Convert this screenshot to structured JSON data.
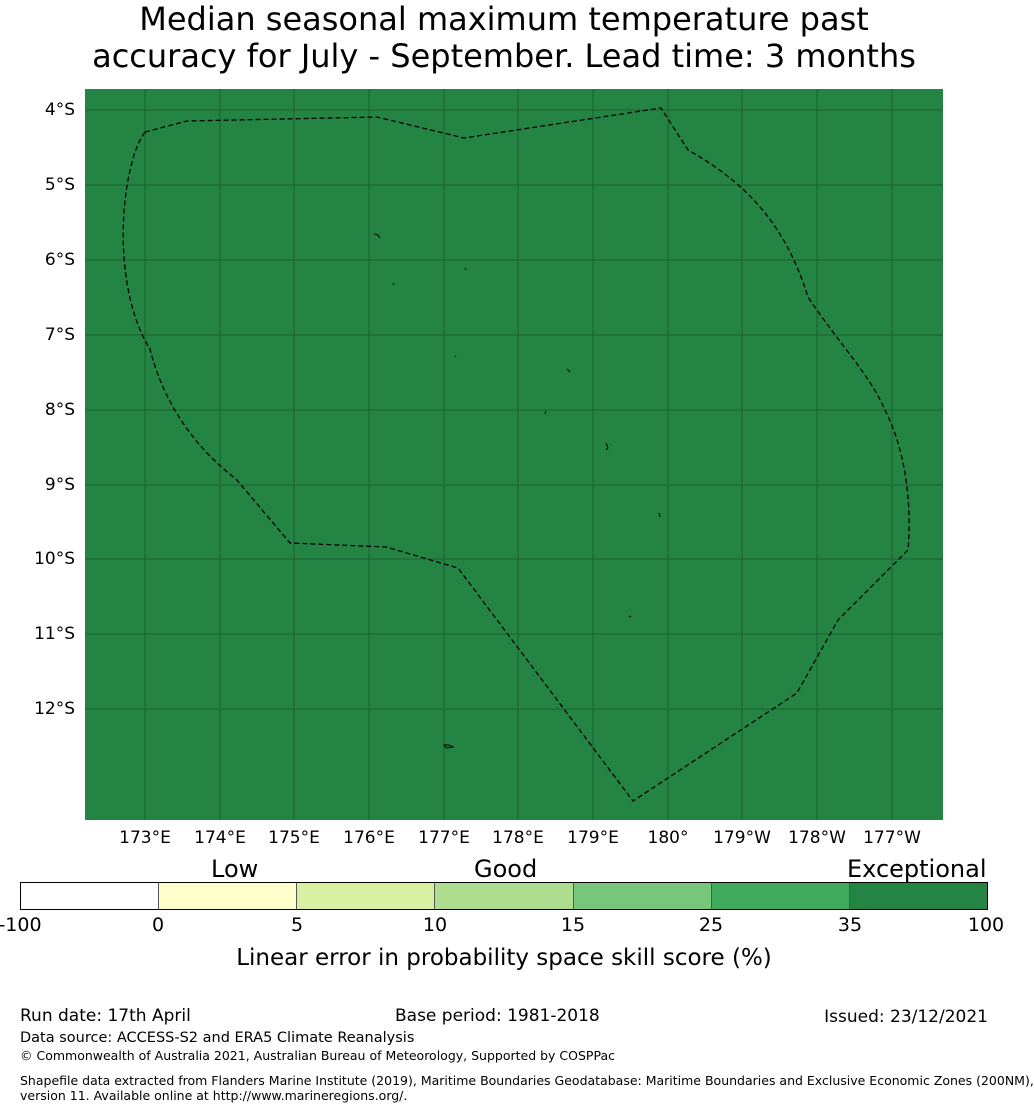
{
  "title": {
    "line1": "Median seasonal maximum temperature past",
    "line2": "accuracy for July - September. Lead time: 3 months"
  },
  "map": {
    "background_color": "#248444",
    "latitude_labels": [
      "4°S",
      "5°S",
      "6°S",
      "7°S",
      "8°S",
      "9°S",
      "10°S",
      "11°S",
      "12°S"
    ],
    "longitude_labels": [
      "173°E",
      "174°E",
      "175°E",
      "176°E",
      "177°E",
      "178°E",
      "179°E",
      "180°",
      "179°W",
      "178°W",
      "177°W"
    ]
  },
  "legend": {
    "categories": [
      "Low",
      "Good",
      "Exceptional"
    ],
    "colors": [
      "#ffffff",
      "#ffffcc",
      "#d9f0a3",
      "#addd8e",
      "#78c679",
      "#41ab5d",
      "#238443"
    ],
    "ticks": [
      "-100",
      "0",
      "5",
      "10",
      "15",
      "25",
      "35",
      "100"
    ],
    "title": "Linear error in probability space skill score (%)"
  },
  "footer": {
    "run_date": "Run date: 17th April",
    "base_period": "Base period: 1981-2018",
    "issued": "Issued: 23/12/2021",
    "data_source": "Data source: ACCESS-S2 and ERA5 Climate Reanalysis",
    "copyright": "© Commonwealth of Australia 2021, Australian Bureau of Meteorology, Supported by COSPPac",
    "shapefile_line1": "Shapefile data extracted from Flanders Marine Institute (2019), Maritime Boundaries Geodatabase: Maritime Boundaries and Exclusive Economic Zones (200NM),",
    "shapefile_line2": "version 11. Available online at http://www.marineregions.org/."
  }
}
